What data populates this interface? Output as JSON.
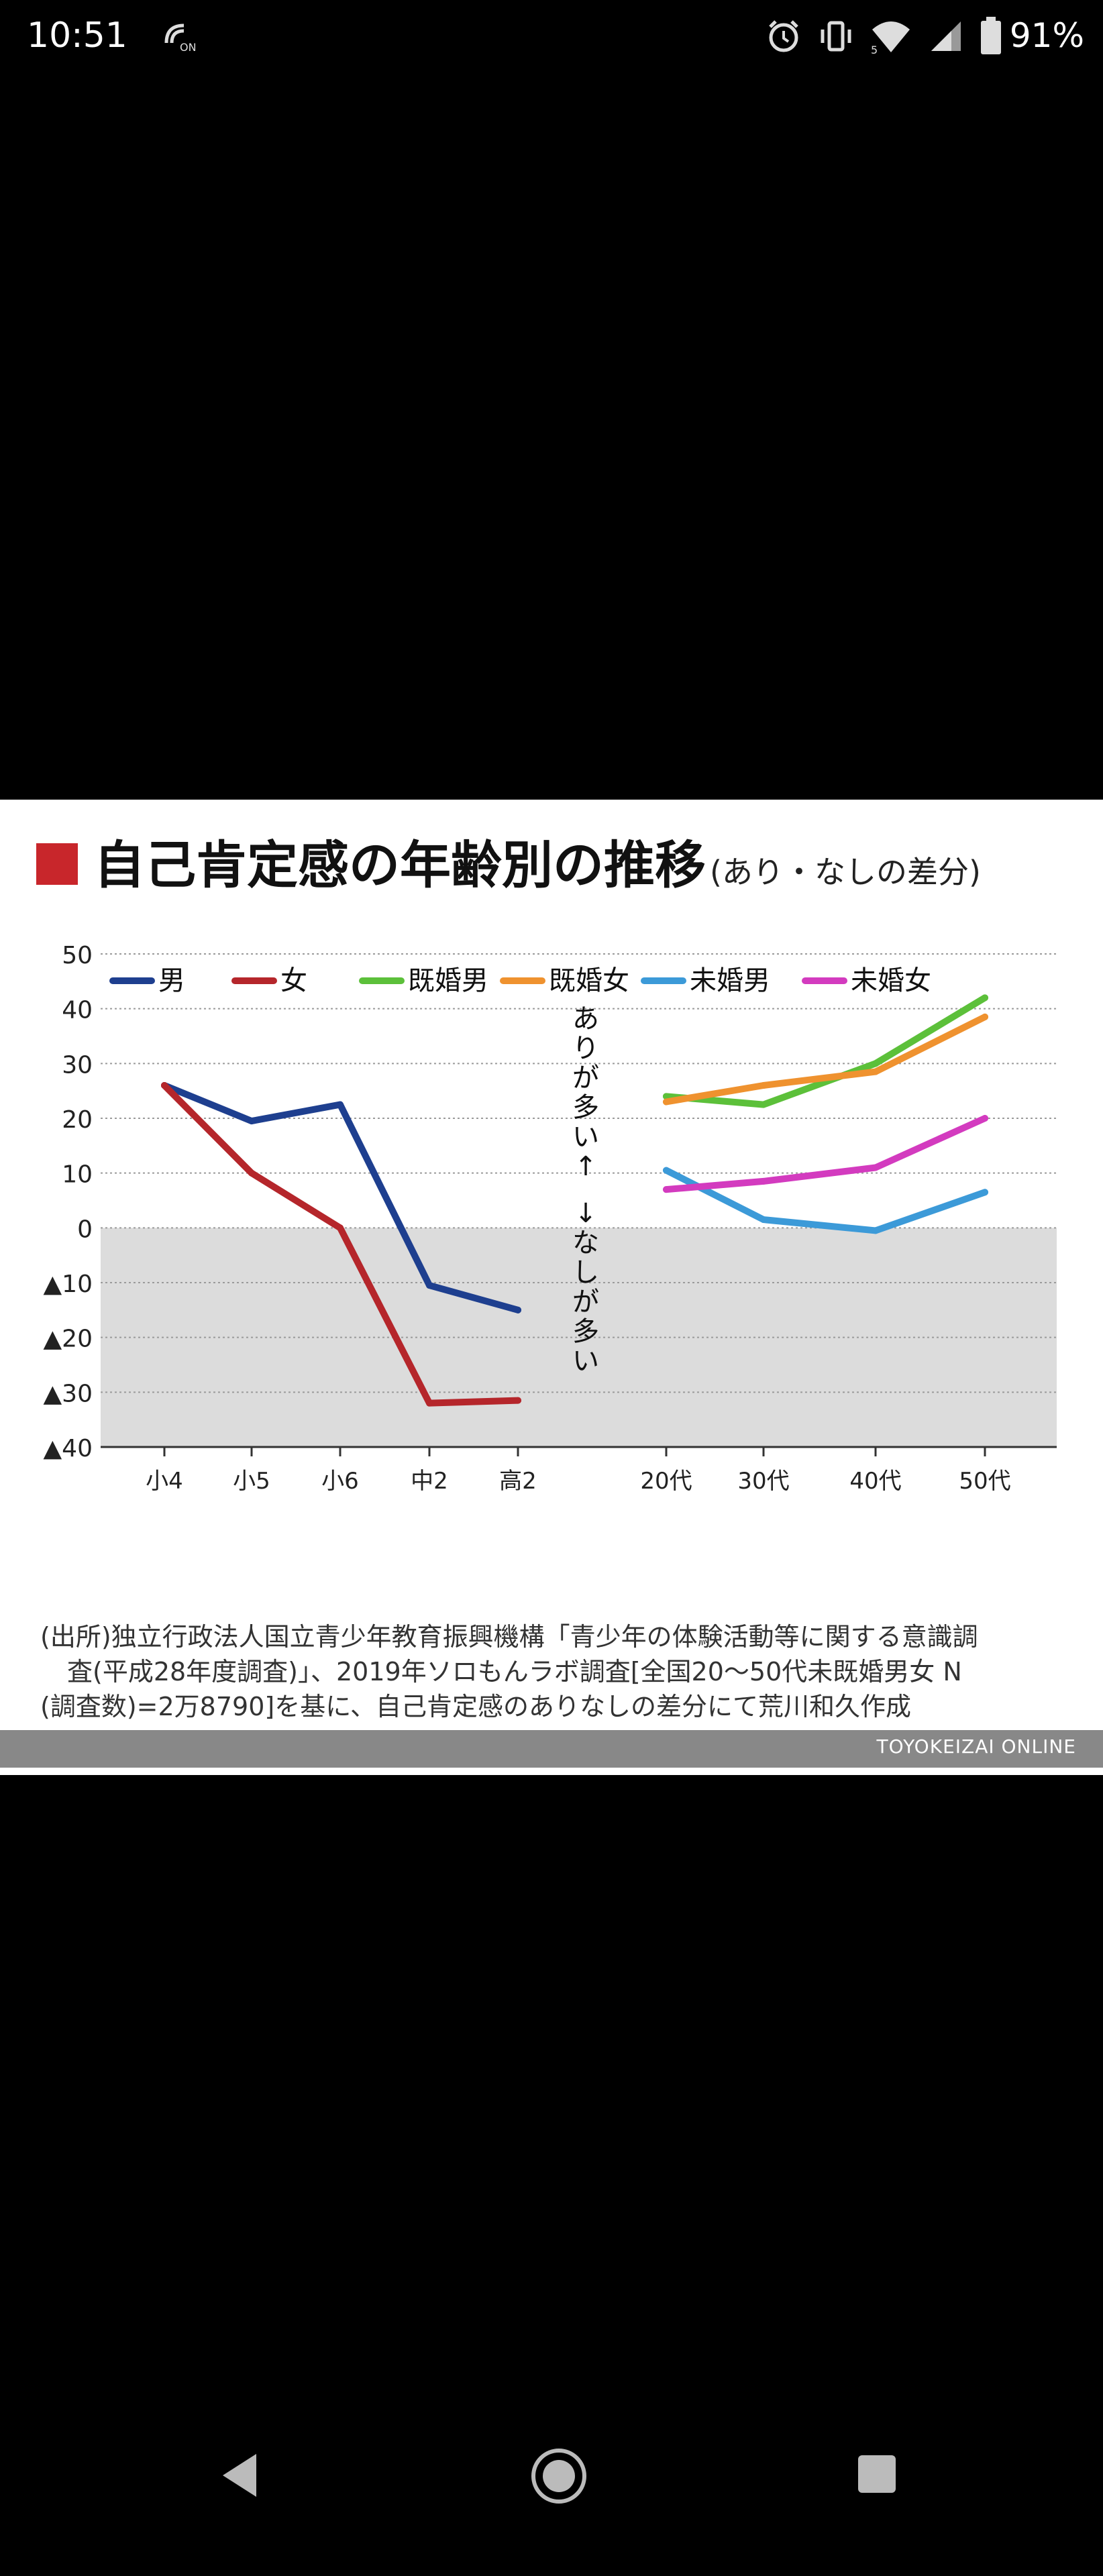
{
  "status": {
    "time": "10:51",
    "battery": "91%",
    "icons": [
      "nfc-icon",
      "alarm-icon",
      "vibrate-icon",
      "wifi-icon",
      "signal-icon",
      "battery-icon"
    ]
  },
  "figure": {
    "title": "自己肯定感の年齢別の推移",
    "subtitle": "(あり・なしの差分)",
    "source_lines": [
      "(出所)独立行政法人国立青少年教育振興機構「青少年の体験活動等に関する意識調",
      "査(平成28年度調査)」、2019年ソロもんラボ調査[全国20〜50代未既婚男女 N",
      "(調査数)=2万8790]を基に、自己肯定感のありなしの差分にて荒川和久作成"
    ],
    "credit": "TOYOKEIZAI ONLINE",
    "annotation_positive": "ありが多い↑",
    "annotation_negative": "↓なしが多い"
  },
  "chart_data": {
    "type": "line",
    "title": "自己肯定感の年齢別の推移",
    "ylim": [
      -40,
      50
    ],
    "yticks": [
      50,
      40,
      30,
      20,
      10,
      0,
      -10,
      -20,
      -30,
      -40
    ],
    "ytick_labels": [
      "50",
      "40",
      "30",
      "20",
      "10",
      "0",
      "▲10",
      "▲20",
      "▲30",
      "▲40"
    ],
    "legend": "top-left",
    "groups": [
      {
        "categories": [
          "小4",
          "小5",
          "小6",
          "中2",
          "高2"
        ],
        "series": [
          {
            "name": "男",
            "color": "#1e3f8f",
            "values": [
              26,
              19.5,
              22.5,
              -10.5,
              -15
            ]
          },
          {
            "name": "女",
            "color": "#b5262b",
            "values": [
              26,
              10,
              0,
              -32,
              -31.5
            ]
          }
        ]
      },
      {
        "categories": [
          "20代",
          "30代",
          "40代",
          "50代"
        ],
        "series": [
          {
            "name": "既婚男",
            "color": "#5cc03a",
            "values": [
              24,
              22.5,
              30,
              42
            ]
          },
          {
            "name": "既婚女",
            "color": "#ef922f",
            "values": [
              23,
              26,
              28.5,
              38.5
            ]
          },
          {
            "name": "未婚男",
            "color": "#3c9ad8",
            "values": [
              10.5,
              1.5,
              -0.5,
              6.5
            ]
          },
          {
            "name": "未婚女",
            "color": "#d33bbf",
            "values": [
              7,
              8.5,
              11,
              20
            ]
          }
        ]
      }
    ]
  }
}
